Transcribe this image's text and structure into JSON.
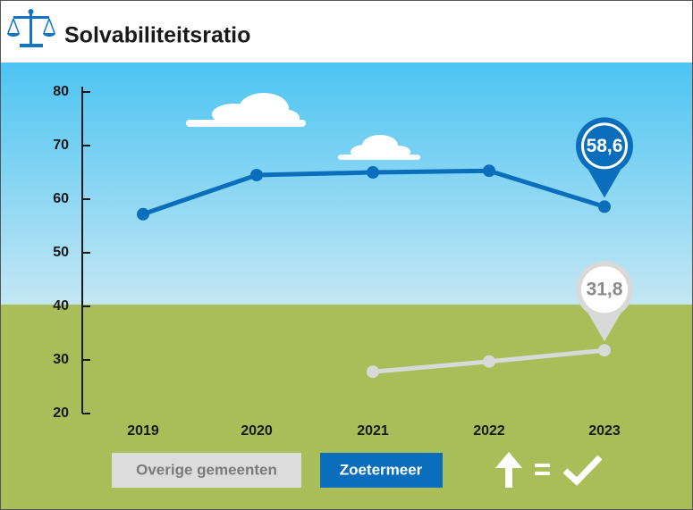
{
  "chart_data": {
    "type": "line",
    "title": "Solvabiliteitsratio",
    "categories": [
      "2019",
      "2020",
      "2021",
      "2022",
      "2023"
    ],
    "series": [
      {
        "name": "Zoetermeer",
        "color": "#0a6ebd",
        "values": [
          57.2,
          64.5,
          65,
          65.3,
          58.6
        ],
        "value_labels": [
          null,
          null,
          null,
          null,
          "58,6"
        ]
      },
      {
        "name": "Overige gemeenten",
        "color": "#d9d9d9",
        "values": [
          null,
          null,
          27.8,
          29.7,
          31.8
        ],
        "value_labels": [
          null,
          null,
          null,
          null,
          "31,8"
        ]
      }
    ],
    "ylim": [
      20,
      80
    ],
    "yticks": [
      20,
      30,
      40,
      50,
      60,
      70,
      80
    ]
  }
}
